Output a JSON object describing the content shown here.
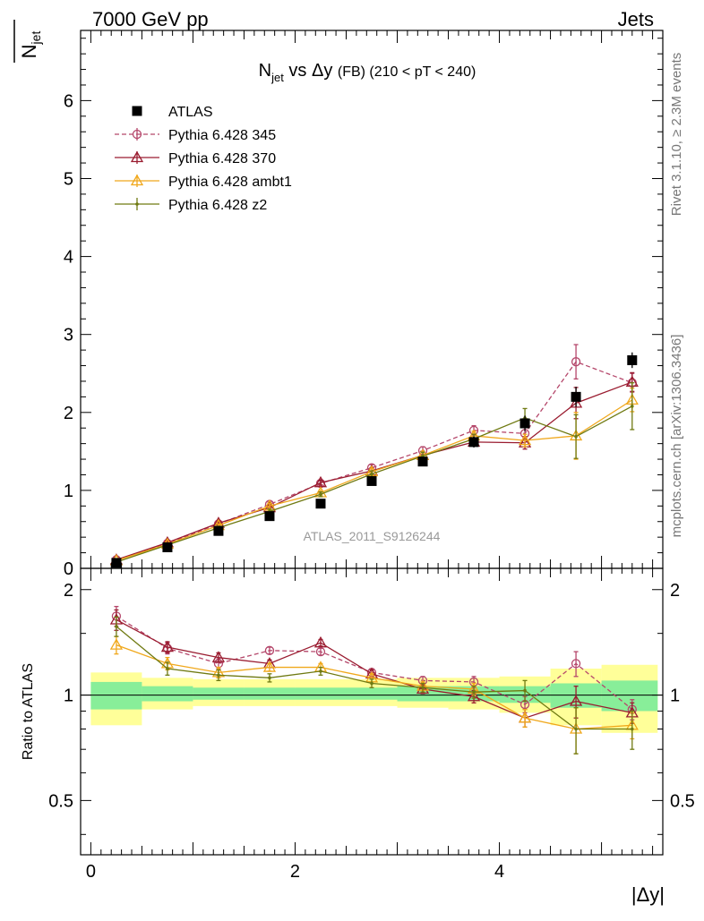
{
  "header": {
    "left": "7000 GeV pp",
    "right": "Jets"
  },
  "side_labels": {
    "rivet": "Rivet 3.1.10, ≥ 2.3M events",
    "mcplots": "mcplots.cern.ch [arXiv:1306.3436]"
  },
  "chart_data": {
    "type": "line",
    "title": "N_jet vs Δy (FB) (210 < pT < 240)",
    "title_parts": {
      "main": "N",
      "sub": "jet",
      "vs": " vs Δy ",
      "fb": "(FB)",
      "range": " (210 < pT < 240)"
    },
    "watermark": "ATLAS_2011_S9126244",
    "ylabel": "N_jet",
    "ylabel_parts": {
      "main": "N",
      "sub": "jet"
    },
    "ratio_ylabel": "Ratio to ATLAS",
    "xlabel": "|Δy|",
    "xlim": [
      -0.1,
      5.6
    ],
    "ylim": [
      0,
      6.9
    ],
    "ratio_ylim": [
      0.35,
      2.3
    ],
    "x_ticks": [
      "0",
      "2",
      "4"
    ],
    "y_ticks": [
      "0",
      "1",
      "2",
      "3",
      "4",
      "5",
      "6"
    ],
    "ratio_ticks": [
      "0.5",
      "1",
      "2"
    ],
    "legend_position": "top-left",
    "x": [
      0.25,
      0.75,
      1.25,
      1.75,
      2.25,
      2.75,
      3.25,
      3.75,
      4.25,
      4.75,
      5.3
    ],
    "data": {
      "name": "ATLAS",
      "values": [
        0.07,
        0.27,
        0.48,
        0.67,
        0.83,
        1.12,
        1.37,
        1.62,
        1.86,
        2.2,
        2.67
      ],
      "errors": [
        0.01,
        0.02,
        0.03,
        0.04,
        0.04,
        0.05,
        0.06,
        0.07,
        0.1,
        0.13,
        0.1
      ]
    },
    "series": [
      {
        "name": "Pythia 6.428 345",
        "color": "#b5476b",
        "dashed": true,
        "marker": "circle",
        "values": [
          0.11,
          0.32,
          0.57,
          0.82,
          1.09,
          1.29,
          1.51,
          1.77,
          1.73,
          2.65,
          2.38
        ],
        "errors": [
          0.01,
          0.02,
          0.02,
          0.03,
          0.03,
          0.04,
          0.05,
          0.06,
          0.08,
          0.22,
          0.12
        ],
        "ratio": [
          1.68,
          1.36,
          1.23,
          1.34,
          1.33,
          1.16,
          1.1,
          1.09,
          0.94,
          1.23,
          0.91
        ],
        "ratio_err": [
          0.11,
          0.05,
          0.04,
          0.03,
          0.03,
          0.03,
          0.03,
          0.04,
          0.05,
          0.1,
          0.06
        ]
      },
      {
        "name": "Pythia 6.428 370",
        "color": "#9a1c30",
        "dashed": false,
        "marker": "triangle",
        "values": [
          0.11,
          0.33,
          0.58,
          0.78,
          1.1,
          1.25,
          1.45,
          1.62,
          1.61,
          2.12,
          2.39
        ],
        "errors": [
          0.01,
          0.02,
          0.02,
          0.03,
          0.03,
          0.04,
          0.05,
          0.05,
          0.08,
          0.2,
          0.12
        ],
        "ratio": [
          1.64,
          1.37,
          1.28,
          1.23,
          1.41,
          1.15,
          1.04,
          0.99,
          0.86,
          0.96,
          0.89
        ],
        "ratio_err": [
          0.11,
          0.05,
          0.04,
          0.03,
          0.03,
          0.03,
          0.03,
          0.04,
          0.05,
          0.1,
          0.06
        ]
      },
      {
        "name": "Pythia 6.428 ambt1",
        "color": "#f0a81c",
        "dashed": false,
        "marker": "triangle",
        "values": [
          0.1,
          0.31,
          0.55,
          0.8,
          0.97,
          1.24,
          1.45,
          1.7,
          1.64,
          1.7,
          2.16
        ],
        "errors": [
          0.01,
          0.02,
          0.02,
          0.03,
          0.03,
          0.04,
          0.05,
          0.06,
          0.08,
          0.3,
          0.15
        ],
        "ratio": [
          1.39,
          1.23,
          1.16,
          1.2,
          1.2,
          1.12,
          1.06,
          1.04,
          0.86,
          0.8,
          0.82
        ],
        "ratio_err": [
          0.08,
          0.05,
          0.04,
          0.03,
          0.03,
          0.03,
          0.03,
          0.04,
          0.05,
          0.12,
          0.07
        ]
      },
      {
        "name": "Pythia 6.428 z2",
        "color": "#6f7a12",
        "dashed": false,
        "marker": "dot",
        "values": [
          0.08,
          0.3,
          0.52,
          0.73,
          0.95,
          1.21,
          1.44,
          1.66,
          1.93,
          1.69,
          2.08
        ],
        "errors": [
          0.01,
          0.02,
          0.02,
          0.03,
          0.03,
          0.04,
          0.05,
          0.06,
          0.12,
          0.28,
          0.3
        ],
        "ratio": [
          1.57,
          1.19,
          1.14,
          1.12,
          1.17,
          1.08,
          1.05,
          1.02,
          1.03,
          0.8,
          0.8
        ],
        "ratio_err": [
          0.1,
          0.05,
          0.04,
          0.03,
          0.03,
          0.03,
          0.03,
          0.04,
          0.07,
          0.12,
          0.1
        ]
      }
    ],
    "bands": {
      "edges": [
        0.0,
        0.5,
        1.0,
        1.5,
        2.0,
        2.5,
        3.0,
        3.5,
        4.0,
        4.5,
        5.0,
        5.55
      ],
      "green": [
        [
          0.91,
          1.09
        ],
        [
          0.96,
          1.06
        ],
        [
          0.97,
          1.05
        ],
        [
          0.97,
          1.05
        ],
        [
          0.97,
          1.05
        ],
        [
          0.97,
          1.05
        ],
        [
          0.96,
          1.06
        ],
        [
          0.96,
          1.06
        ],
        [
          0.95,
          1.06
        ],
        [
          0.92,
          1.08
        ],
        [
          0.9,
          1.1
        ]
      ],
      "yellow": [
        [
          0.82,
          1.16
        ],
        [
          0.91,
          1.12
        ],
        [
          0.93,
          1.11
        ],
        [
          0.93,
          1.11
        ],
        [
          0.93,
          1.11
        ],
        [
          0.93,
          1.11
        ],
        [
          0.92,
          1.12
        ],
        [
          0.91,
          1.12
        ],
        [
          0.89,
          1.13
        ],
        [
          0.82,
          1.19
        ],
        [
          0.78,
          1.22
        ]
      ]
    }
  }
}
